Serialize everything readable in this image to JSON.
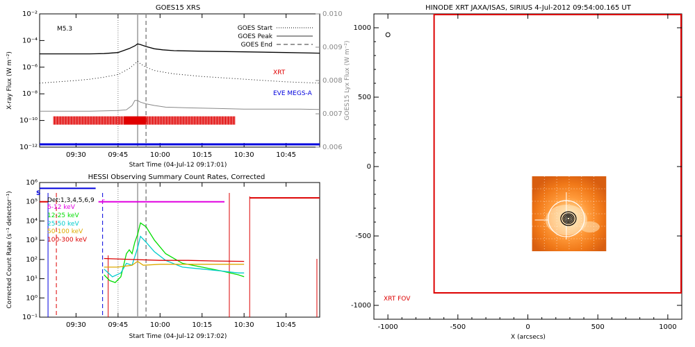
{
  "chart_data": [
    {
      "type": "line",
      "title": "GOES15 XRS",
      "xlabel": "Start Time (04-Jul-12 09:17:01)",
      "ylabel": "X-ray Flux (W m⁻²)",
      "ylabel_right": "GOES15 Lyx Flux (W m⁻²)",
      "x_ticks": [
        "09:30",
        "09:45",
        "10:00",
        "10:15",
        "10:30",
        "10:45"
      ],
      "x_tick_minutes": [
        570,
        585,
        600,
        615,
        630,
        645
      ],
      "xlim_minutes": [
        557,
        657
      ],
      "y_ticks": [
        "10⁻¹²",
        "10⁻¹⁰",
        "10⁻⁸",
        "10⁻⁶",
        "10⁻⁴",
        "10⁻²"
      ],
      "ylim_log10": [
        -12,
        -2
      ],
      "y2_ticks": [
        "0.006",
        "0.007",
        "0.008",
        "0.009",
        "0.010"
      ],
      "y2lim": [
        0.006,
        0.01
      ],
      "flare_class": "M5.3",
      "legend": [
        {
          "label": "GOES Start",
          "style": "dotted"
        },
        {
          "label": "GOES Peak",
          "style": "solid"
        },
        {
          "label": "GOES End",
          "style": "dashed"
        }
      ],
      "annotations": [
        {
          "text": "XRT",
          "color": "#e00000"
        },
        {
          "text": "EVE MEGS-A",
          "color": "#0000dd"
        }
      ],
      "vlines_minutes": {
        "start": 585,
        "peak": 592,
        "end": 595
      },
      "series": [
        {
          "name": "GOES long",
          "color": "#000000",
          "x": [
            557,
            575,
            580,
            585,
            589,
            591,
            592,
            593,
            595,
            598,
            601,
            605,
            615,
            630,
            645,
            657
          ],
          "log10_y": [
            -5.0,
            -5.0,
            -4.98,
            -4.9,
            -4.6,
            -4.4,
            -4.25,
            -4.3,
            -4.45,
            -4.62,
            -4.7,
            -4.76,
            -4.8,
            -4.85,
            -4.9,
            -4.95
          ]
        },
        {
          "name": "GOES short",
          "color": "#000000",
          "style": "dotted",
          "x": [
            557,
            570,
            575,
            580,
            585,
            589,
            591,
            592,
            593,
            595,
            598,
            602,
            605,
            615,
            630,
            645,
            657
          ],
          "log10_y": [
            -7.2,
            -7.0,
            -6.9,
            -6.75,
            -6.55,
            -6.1,
            -5.75,
            -5.55,
            -5.75,
            -6.0,
            -6.25,
            -6.4,
            -6.5,
            -6.7,
            -6.9,
            -7.1,
            -7.2
          ]
        },
        {
          "name": "Lyx",
          "color": "#888888",
          "x": [
            557,
            575,
            585,
            588,
            590,
            591,
            592,
            593,
            595,
            598,
            602,
            610,
            620,
            630,
            640,
            650,
            657
          ],
          "y2": [
            0.00708,
            0.00708,
            0.0071,
            0.00712,
            0.00725,
            0.0074,
            0.0074,
            0.00735,
            0.0073,
            0.00725,
            0.0072,
            0.00718,
            0.00716,
            0.00714,
            0.00714,
            0.00714,
            0.00713
          ]
        }
      ],
      "xrt_intervals_minutes": [
        [
          562,
          587
        ],
        [
          587,
          595
        ],
        [
          595,
          627
        ]
      ],
      "eve_baseline_log10": -11.95
    },
    {
      "type": "line",
      "title": "HESSI Observing Summary Count Rates, Corrected",
      "xlabel": "Start Time (04-Jul-12 09:17:02)",
      "ylabel": "Corrected Count Rate (s⁻¹ detector⁻¹)",
      "x_ticks": [
        "09:30",
        "09:45",
        "10:00",
        "10:15",
        "10:30",
        "10:45"
      ],
      "x_tick_minutes": [
        570,
        585,
        600,
        615,
        630,
        645
      ],
      "xlim_minutes": [
        557,
        657
      ],
      "y_ticks": [
        "10⁻¹",
        "10⁰",
        "10¹",
        "10²",
        "10³",
        "10⁴",
        "10⁵",
        "10⁶"
      ],
      "ylim_log10": [
        -1,
        6
      ],
      "detectors": "Det:1,3,4,5,6,9",
      "energy_bands": [
        {
          "label": "6-12 keV",
          "color": "#e000e0"
        },
        {
          "label": "12-25 keV",
          "color": "#00dd00"
        },
        {
          "label": "25-50 keV",
          "color": "#00cccc"
        },
        {
          "label": "50-100 keV",
          "color": "#ddaa00"
        },
        {
          "label": "100-300 keV",
          "color": "#dd0000"
        }
      ],
      "flags": [
        {
          "text": "S",
          "color": "#0000dd"
        },
        {
          "text": "F",
          "color": "#e000e0"
        }
      ],
      "bar_lines": [
        {
          "color": "#0000dd",
          "x": [
            557,
            577
          ],
          "log10_y": 5.7
        },
        {
          "color": "#e000e0",
          "x": [
            578,
            623
          ],
          "log10_y": 5.0
        },
        {
          "color": "#dd0000",
          "x": [
            557,
            560
          ],
          "log10_y": 5.0
        },
        {
          "color": "#dd0000",
          "x": [
            632,
            657
          ],
          "log10_y": 5.2
        }
      ],
      "vlines_minutes": {
        "start": 585,
        "peak": 592,
        "end": 595
      },
      "series": [
        {
          "name": "12-25 keV",
          "color": "#00dd00",
          "x": [
            580,
            582,
            584,
            586,
            587,
            588,
            589,
            590,
            591,
            592,
            593,
            595,
            598,
            602,
            608,
            615,
            622,
            628,
            630
          ],
          "log10_y": [
            1.2,
            0.9,
            0.8,
            1.1,
            1.7,
            2.3,
            2.5,
            2.3,
            2.9,
            3.3,
            3.9,
            3.7,
            3.0,
            2.3,
            1.8,
            1.6,
            1.4,
            1.2,
            1.1
          ]
        },
        {
          "name": "25-50 keV",
          "color": "#00cccc",
          "x": [
            580,
            583,
            586,
            588,
            590,
            592,
            593,
            595,
            598,
            602,
            608,
            615,
            622,
            628,
            630
          ],
          "log10_y": [
            1.5,
            1.1,
            1.3,
            1.8,
            1.7,
            2.6,
            3.2,
            2.9,
            2.4,
            1.95,
            1.6,
            1.5,
            1.4,
            1.3,
            1.3
          ]
        },
        {
          "name": "50-100 keV",
          "color": "#ddaa00",
          "x": [
            580,
            585,
            590,
            592,
            594,
            600,
            610,
            620,
            630
          ],
          "log10_y": [
            1.6,
            1.6,
            1.7,
            1.9,
            1.7,
            1.75,
            1.75,
            1.75,
            1.75
          ]
        },
        {
          "name": "100-300 keV",
          "color": "#dd0000",
          "x": [
            580,
            590,
            600,
            610,
            620,
            630
          ],
          "log10_y": [
            2.05,
            2.0,
            1.95,
            1.95,
            1.92,
            1.9
          ]
        }
      ],
      "eclipse_markers_minutes": [
        560,
        578,
        579,
        623,
        632,
        656
      ]
    },
    {
      "type": "heatmap",
      "title": "HINODE XRT JAXA/ISAS, SIRIUS  4-Jul-2012 09:54:00.165 UT",
      "xlabel": "X (arcsecs)",
      "ylabel": "",
      "xlim": [
        -1100,
        1100
      ],
      "ylim": [
        -1100,
        1100
      ],
      "x_ticks": [
        "-1000",
        "-500",
        "0",
        "500",
        "1000"
      ],
      "x_tick_values": [
        -1000,
        -500,
        0,
        500,
        1000
      ],
      "y_ticks": [
        "-1000",
        "-500",
        "0",
        "500",
        "1000"
      ],
      "y_tick_values": [
        -1000,
        -500,
        0,
        500,
        1000
      ],
      "fov_label": "XRT FOV",
      "fov_arcsec": {
        "x": [
          -670,
          1100
        ],
        "y": [
          -910,
          1100
        ]
      },
      "image_extent_arcsec": {
        "x": [
          30,
          560
        ],
        "y": [
          -610,
          -70
        ]
      },
      "source_center_arcsec": [
        285,
        -375
      ],
      "marker_circle_arcsec": [
        -1000,
        950
      ]
    }
  ]
}
